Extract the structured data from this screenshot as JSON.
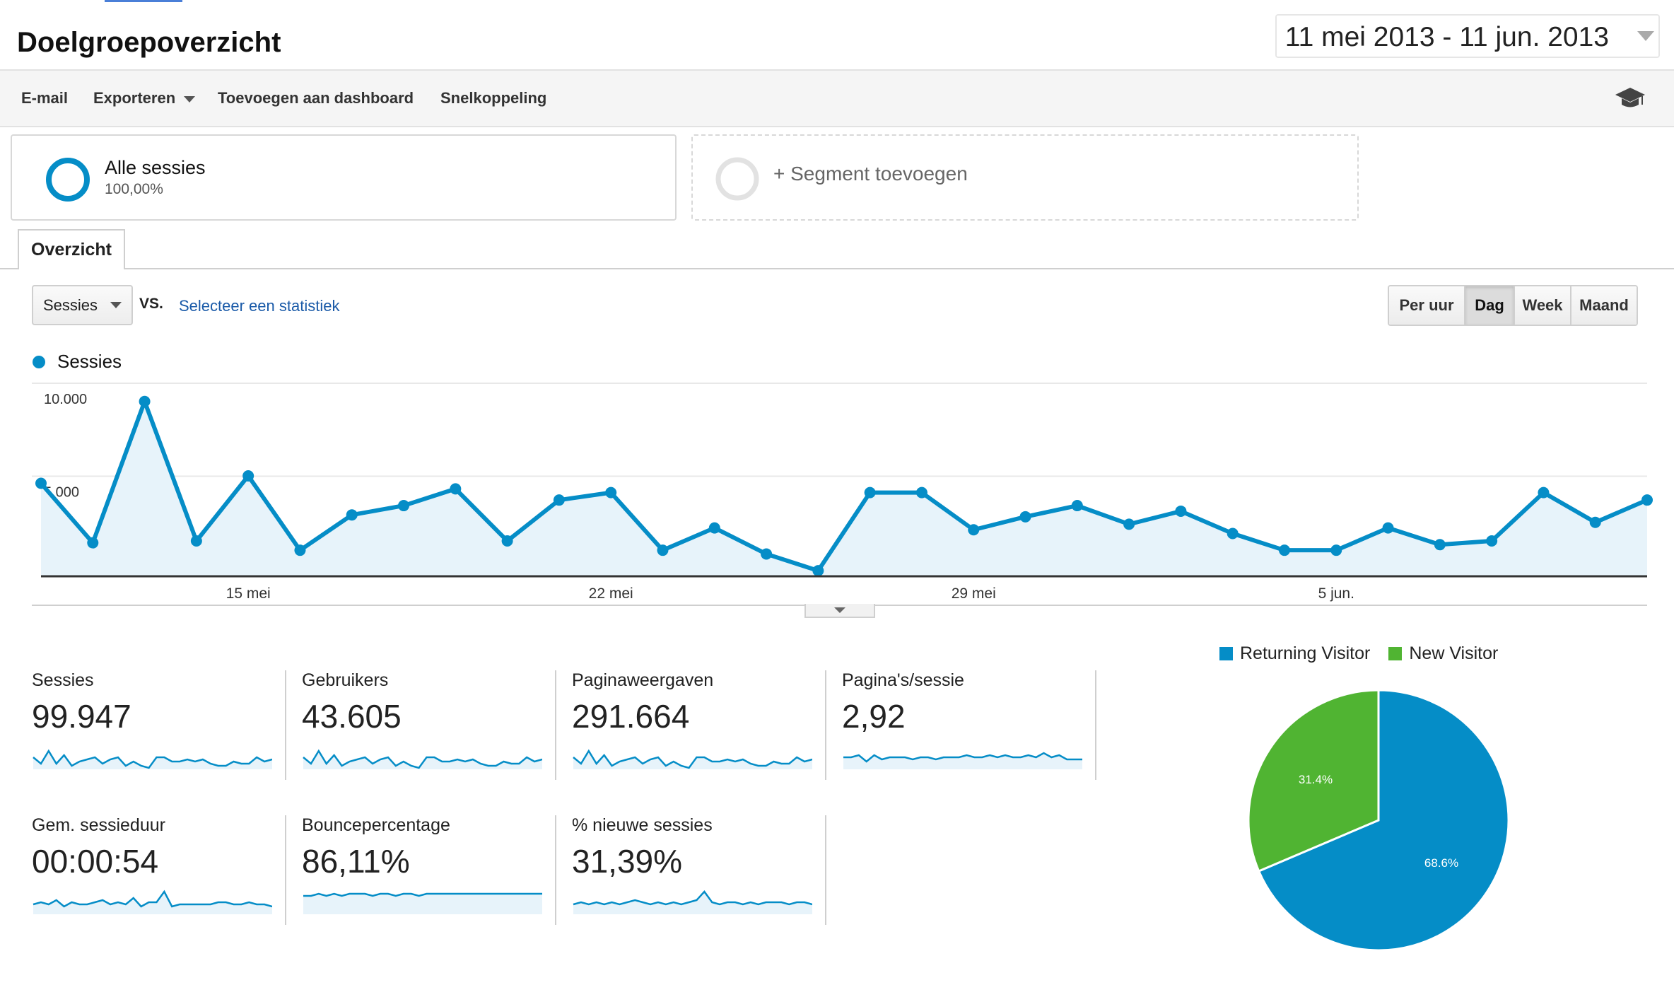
{
  "header": {
    "title": "Doelgroepoverzicht",
    "date_range": "11 mei 2013 - 11 jun. 2013"
  },
  "toolbar": {
    "email": "E-mail",
    "export": "Exporteren",
    "add_dashboard": "Toevoegen aan dashboard",
    "shortcut": "Snelkoppeling",
    "academy_icon": "graduation-cap-icon"
  },
  "segments": {
    "all_label": "Alle sessies",
    "all_pct": "100,00%",
    "add_label": "+ Segment toevoegen"
  },
  "tabs": {
    "overview": "Overzicht"
  },
  "controls": {
    "metric": "Sessies",
    "vs": "VS.",
    "select_stat": "Selecteer een statistiek",
    "granularity": [
      "Per uur",
      "Dag",
      "Week",
      "Maand"
    ],
    "active_granularity": "Dag"
  },
  "chart_data": {
    "type": "line",
    "series": [
      {
        "name": "Sessies",
        "color": "#058dc7",
        "values": [
          5000,
          1800,
          9400,
          1900,
          5400,
          1400,
          3300,
          3800,
          4700,
          1900,
          4100,
          4500,
          1400,
          2600,
          1200,
          300,
          4500,
          4500,
          2500,
          3200,
          3800,
          2800,
          3500,
          2300,
          1400,
          1400,
          2600,
          1700,
          1900,
          4500,
          2900,
          4100
        ]
      }
    ],
    "x_tick_labels": [
      "15 mei",
      "22 mei",
      "29 mei",
      "5 jun."
    ],
    "x_tick_indices": [
      4,
      11,
      18,
      25
    ],
    "y_tick_labels": [
      "10.000",
      "5.000"
    ],
    "y_tick_values": [
      10000,
      5000
    ],
    "ylim": [
      0,
      10000
    ],
    "grid": true,
    "area_fill": true
  },
  "metrics": [
    {
      "label": "Sessies",
      "value": "99.947",
      "spark": [
        5,
        2,
        8,
        2,
        6,
        1,
        3,
        4,
        5,
        2,
        4,
        5,
        1,
        3,
        1,
        0,
        5,
        5,
        3,
        3,
        4,
        3,
        4,
        2,
        1,
        1,
        3,
        2,
        2,
        5,
        3,
        4
      ],
      "fill": false
    },
    {
      "label": "Gebruikers",
      "value": "43.605",
      "spark": [
        5,
        2,
        8,
        2,
        6,
        1,
        3,
        4,
        5,
        2,
        4,
        5,
        1,
        3,
        1,
        0,
        5,
        5,
        3,
        3,
        4,
        3,
        4,
        2,
        1,
        1,
        3,
        2,
        2,
        5,
        3,
        4
      ],
      "fill": false
    },
    {
      "label": "Paginaweergaven",
      "value": "291.664",
      "spark": [
        5,
        2,
        8,
        2,
        6,
        1,
        3,
        4,
        5,
        2,
        4,
        5,
        1,
        3,
        1,
        0,
        5,
        5,
        3,
        3,
        4,
        3,
        4,
        2,
        1,
        1,
        3,
        2,
        2,
        5,
        3,
        4
      ],
      "fill": false
    },
    {
      "label": "Pagina's/sessie",
      "value": "2,92",
      "spark": [
        5,
        5,
        6,
        3,
        6,
        4,
        5,
        5,
        5,
        4,
        5,
        5,
        4,
        5,
        5,
        5,
        6,
        5,
        5,
        6,
        5,
        6,
        5,
        5,
        6,
        5,
        7,
        5,
        6,
        4,
        4,
        4
      ],
      "fill": false
    },
    {
      "label": "Gem. sessieduur",
      "value": "00:00:54",
      "spark": [
        4,
        5,
        4,
        6,
        3,
        5,
        4,
        4,
        5,
        6,
        4,
        5,
        4,
        7,
        3,
        5,
        5,
        10,
        3,
        4,
        4,
        4,
        4,
        4,
        5,
        5,
        4,
        4,
        5,
        4,
        4,
        3
      ],
      "fill": false
    },
    {
      "label": "Bouncepercentage",
      "value": "86,11%",
      "spark": [
        8,
        8,
        9,
        8,
        9,
        8,
        9,
        9,
        9,
        8,
        9,
        9,
        8,
        9,
        9,
        8,
        9,
        9,
        9,
        9,
        9,
        9,
        9,
        9,
        9,
        9,
        9,
        9,
        9,
        9,
        9,
        9
      ],
      "fill": true
    },
    {
      "label": "% nieuwe sessies",
      "value": "31,39%",
      "spark": [
        4,
        5,
        4,
        5,
        4,
        5,
        4,
        5,
        6,
        5,
        4,
        5,
        4,
        5,
        4,
        5,
        6,
        10,
        5,
        4,
        5,
        5,
        4,
        5,
        4,
        5,
        5,
        5,
        4,
        5,
        5,
        4
      ],
      "fill": false
    }
  ],
  "pie": {
    "legend": [
      {
        "name": "Returning Visitor",
        "color": "#058dc7"
      },
      {
        "name": "New Visitor",
        "color": "#50b432"
      }
    ],
    "chart_data": {
      "type": "pie",
      "slices": [
        {
          "name": "Returning Visitor",
          "value": 68.6,
          "label": "68.6%",
          "color": "#058dc7"
        },
        {
          "name": "New Visitor",
          "value": 31.4,
          "label": "31.4%",
          "color": "#50b432"
        }
      ]
    }
  }
}
